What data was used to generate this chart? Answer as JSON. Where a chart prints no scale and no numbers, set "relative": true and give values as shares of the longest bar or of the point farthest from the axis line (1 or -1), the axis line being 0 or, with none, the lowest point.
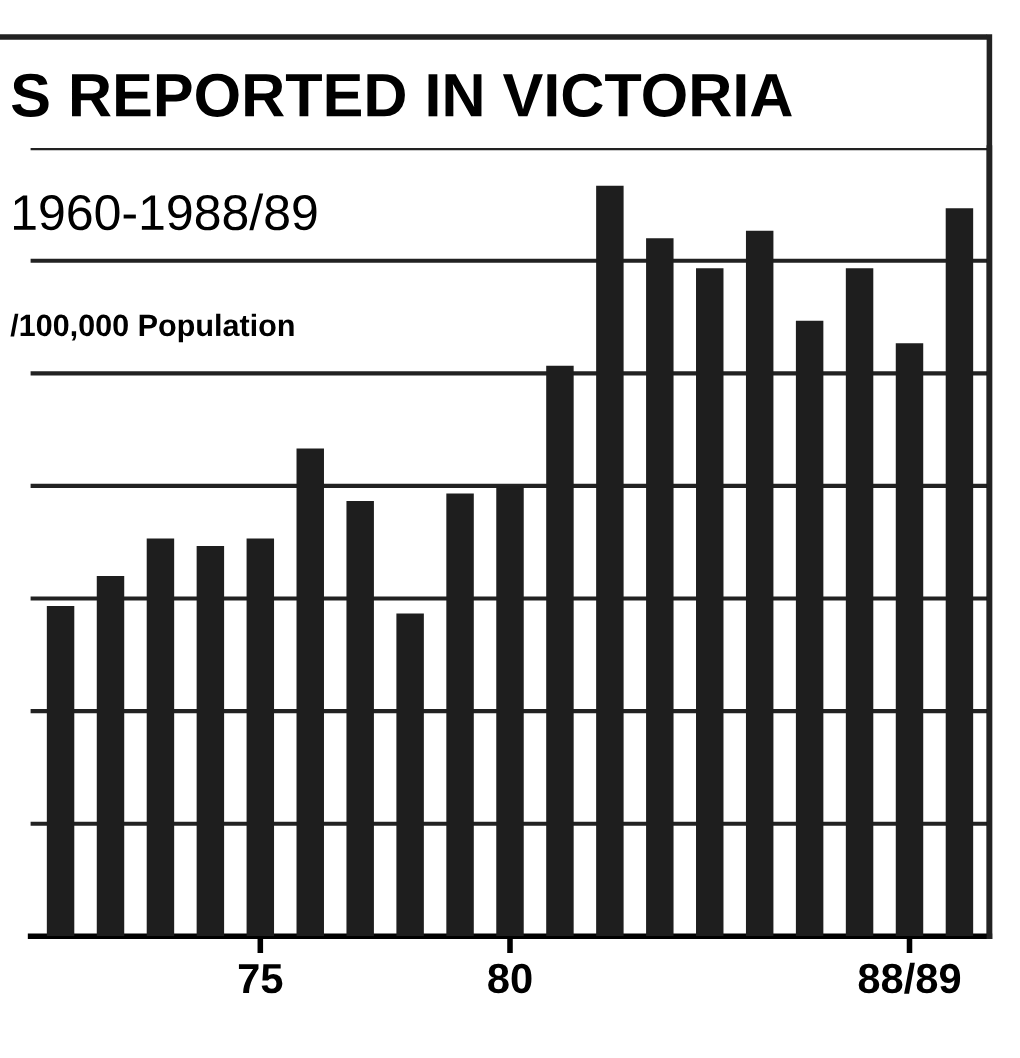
{
  "chart_data": {
    "type": "bar",
    "title": "S REPORTED IN VICTORIA",
    "subtitle": "1960-1988/89",
    "ylabel": "/100,000 Population",
    "categories": [
      null,
      null,
      null,
      null,
      "75",
      null,
      null,
      null,
      null,
      "80",
      null,
      null,
      null,
      null,
      null,
      null,
      null,
      "88/89",
      null
    ],
    "values": [
      0.44,
      0.48,
      0.53,
      0.52,
      0.53,
      0.65,
      0.58,
      0.43,
      0.59,
      0.6,
      0.76,
      1,
      0.93,
      0.89,
      0.94,
      0.82,
      0.89,
      0.79,
      0.97
    ],
    "color": "#1e1e1e",
    "relative": true,
    "grid": "y",
    "tick_labels": "x"
  }
}
